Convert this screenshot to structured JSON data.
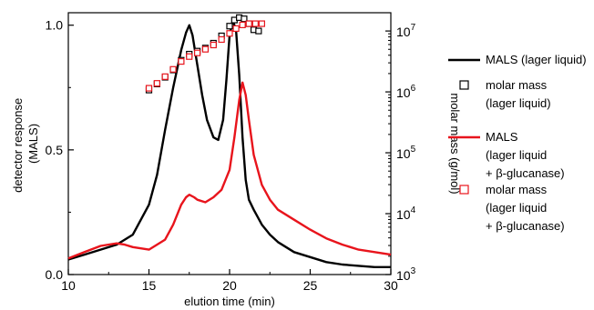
{
  "chart_data": {
    "type": "line",
    "xlabel": "elution time (min)",
    "ylabel_left": [
      "detector response",
      "(MALS)"
    ],
    "ylabel_right": "molar mass (g/mol)",
    "xlim": [
      10,
      30
    ],
    "ylim_left": [
      0,
      1.05
    ],
    "ylim_right_log": [
      3,
      7.3
    ],
    "x_ticks": [
      "10",
      "15",
      "20",
      "25",
      "30"
    ],
    "y_left_ticks": [
      "0.0",
      "0.5",
      "1.0"
    ],
    "y_right_ticks": [
      {
        "base": "10",
        "exp": "3"
      },
      {
        "base": "10",
        "exp": "4"
      },
      {
        "base": "10",
        "exp": "5"
      },
      {
        "base": "10",
        "exp": "6"
      },
      {
        "base": "10",
        "exp": "7"
      }
    ],
    "colors": {
      "lager": "#000000",
      "glucanase": "#e8141c"
    },
    "legend": [
      {
        "lines": [
          "MALS (lager liquid)"
        ],
        "marker": "line",
        "color": "#000000"
      },
      {
        "lines": [
          "molar mass",
          "(lager liquid)"
        ],
        "marker": "square",
        "color": "#000000"
      },
      {
        "lines": [
          "MALS",
          "(lager liquid",
          " + β-glucanase)"
        ],
        "marker": "line",
        "color": "#e8141c"
      },
      {
        "lines": [
          "molar mass",
          "(lager liquid",
          "+ β-glucanase)"
        ],
        "marker": "square",
        "color": "#e8141c"
      }
    ],
    "series": [
      {
        "id": "mals_lager",
        "kind": "line",
        "axis": "left",
        "color": "#000000",
        "x": [
          10,
          11,
          12,
          13,
          14,
          15,
          15.5,
          16,
          16.5,
          17,
          17.3,
          17.5,
          17.7,
          18,
          18.3,
          18.6,
          19,
          19.3,
          19.6,
          19.8,
          20,
          20.2,
          20.4,
          20.6,
          20.8,
          21,
          21.2,
          21.5,
          22,
          22.5,
          23,
          24,
          25,
          26,
          27,
          28,
          29,
          30
        ],
        "y": [
          0.06,
          0.08,
          0.1,
          0.12,
          0.16,
          0.28,
          0.4,
          0.58,
          0.75,
          0.9,
          0.97,
          1.0,
          0.96,
          0.84,
          0.72,
          0.62,
          0.55,
          0.54,
          0.62,
          0.78,
          0.96,
          1.02,
          0.98,
          0.8,
          0.55,
          0.38,
          0.3,
          0.26,
          0.2,
          0.16,
          0.13,
          0.09,
          0.07,
          0.05,
          0.04,
          0.035,
          0.03,
          0.03
        ]
      },
      {
        "id": "mals_glucanase",
        "kind": "line",
        "axis": "left",
        "color": "#e8141c",
        "x": [
          10,
          11,
          12,
          13,
          13.5,
          14,
          15,
          16,
          16.5,
          17,
          17.3,
          17.5,
          17.8,
          18,
          18.5,
          19,
          19.5,
          20,
          20.3,
          20.6,
          20.8,
          21,
          21.2,
          21.5,
          22,
          22.5,
          23,
          24,
          25,
          26,
          27,
          28,
          29,
          30
        ],
        "y": [
          0.065,
          0.09,
          0.115,
          0.125,
          0.12,
          0.11,
          0.1,
          0.14,
          0.2,
          0.28,
          0.31,
          0.32,
          0.31,
          0.3,
          0.29,
          0.31,
          0.34,
          0.42,
          0.55,
          0.7,
          0.77,
          0.72,
          0.62,
          0.48,
          0.36,
          0.3,
          0.26,
          0.22,
          0.18,
          0.145,
          0.12,
          0.1,
          0.09,
          0.08
        ]
      },
      {
        "id": "molar_lager",
        "kind": "squares",
        "axis": "right",
        "color": "#000000",
        "x": [
          15,
          15.5,
          16,
          16.5,
          17,
          17.5,
          18,
          18.5,
          19,
          19.5,
          20,
          20.3,
          20.6,
          20.9,
          21.2,
          21.5,
          21.8
        ],
        "y": [
          6.03,
          6.13,
          6.24,
          6.36,
          6.52,
          6.62,
          6.67,
          6.72,
          6.8,
          6.92,
          7.08,
          7.18,
          7.22,
          7.2,
          7.12,
          7.02,
          7.0
        ]
      },
      {
        "id": "molar_glucanase",
        "kind": "squares",
        "axis": "right",
        "color": "#e8141c",
        "x": [
          15,
          15.5,
          16,
          16.5,
          17,
          17.5,
          18,
          18.5,
          19,
          19.5,
          20,
          20.4,
          20.8,
          21.2,
          21.6,
          22
        ],
        "y": [
          6.06,
          6.14,
          6.25,
          6.37,
          6.5,
          6.58,
          6.64,
          6.7,
          6.77,
          6.86,
          6.96,
          7.04,
          7.1,
          7.12,
          7.12,
          7.12
        ]
      }
    ]
  }
}
